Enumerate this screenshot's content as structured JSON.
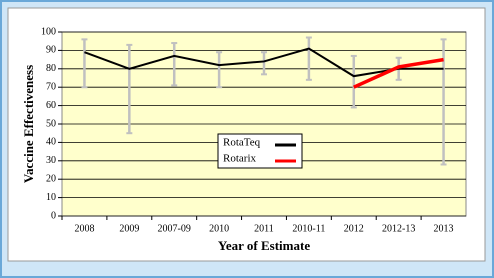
{
  "chart_data": {
    "type": "line",
    "x_label": "Year of Estimate",
    "y_label": "Vaccine Effectiveness",
    "categories": [
      "2008",
      "2009",
      "2007-09",
      "2010",
      "2011",
      "2010-11",
      "2012",
      "2012-13",
      "2013"
    ],
    "series": [
      {
        "name": "RotaTeq",
        "color": "#000000",
        "values": [
          89,
          80,
          87,
          82,
          84,
          91,
          76,
          80,
          80
        ]
      },
      {
        "name": "Rotarix",
        "color": "#ff0000",
        "values": [
          null,
          null,
          null,
          null,
          null,
          null,
          70,
          81,
          85
        ]
      }
    ],
    "intervals": {
      "color": "#c0c0c0",
      "low": [
        70,
        45,
        71,
        70,
        77,
        74,
        59,
        74,
        28
      ],
      "high": [
        96,
        93,
        94,
        89,
        89,
        97,
        87,
        86,
        96
      ]
    },
    "ylim": [
      0,
      100
    ],
    "yticks": [
      0,
      10,
      20,
      30,
      40,
      50,
      60,
      70,
      80,
      90,
      100
    ],
    "grid": true,
    "plot_background": "#ffffcc"
  }
}
